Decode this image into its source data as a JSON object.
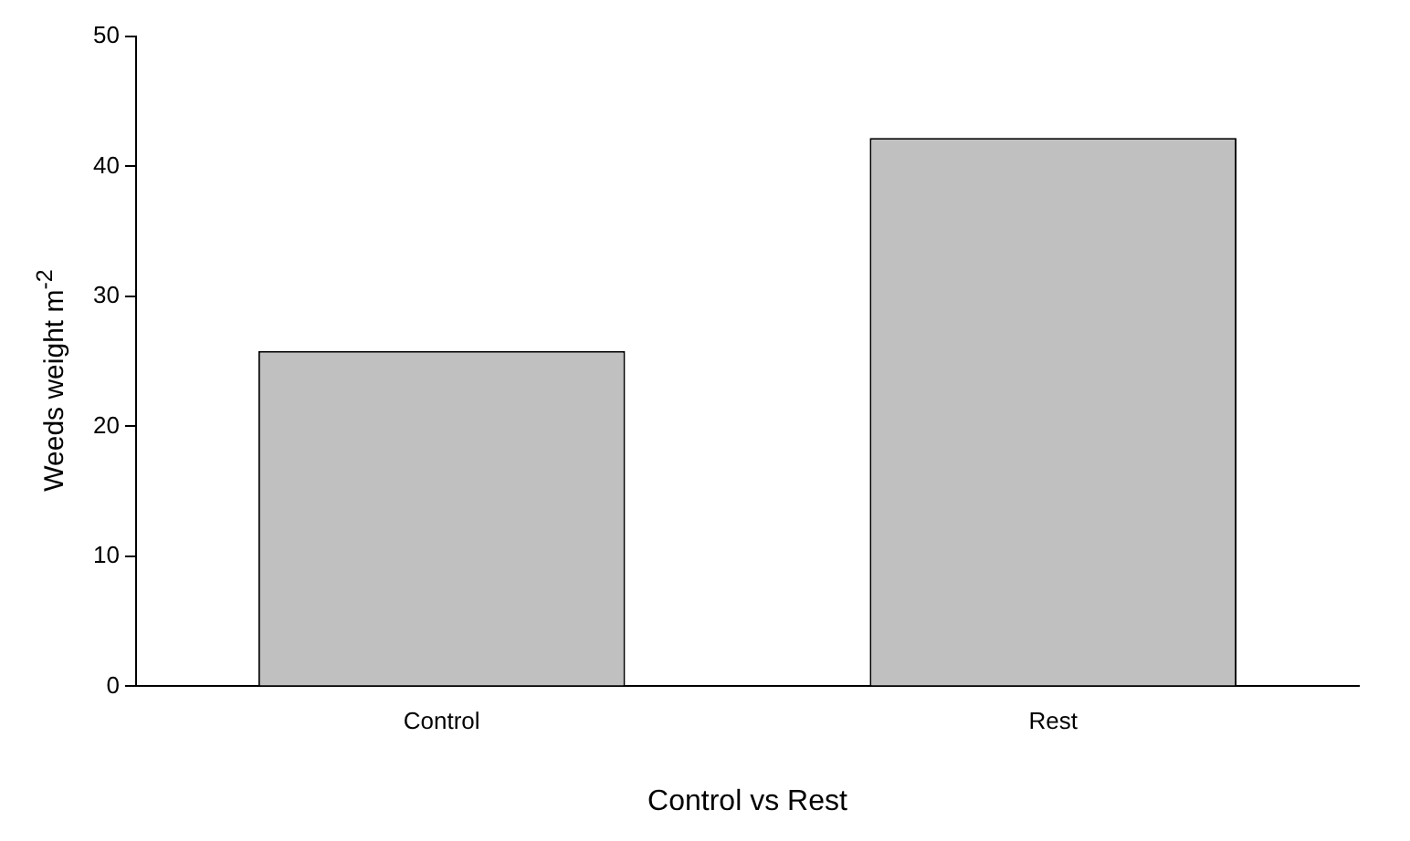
{
  "chart_data": {
    "type": "bar",
    "xlabel": "Control vs Rest",
    "ylabel": "Weeds weight m$^{-2}$",
    "categories": [
      "Control",
      "Rest"
    ],
    "values": [
      25.8,
      42.2
    ],
    "color": "#c0c0c0",
    "ylim": [
      0,
      50
    ],
    "yticks": [
      0,
      10,
      20,
      30,
      40,
      50
    ],
    "grid": false,
    "legend": false
  }
}
